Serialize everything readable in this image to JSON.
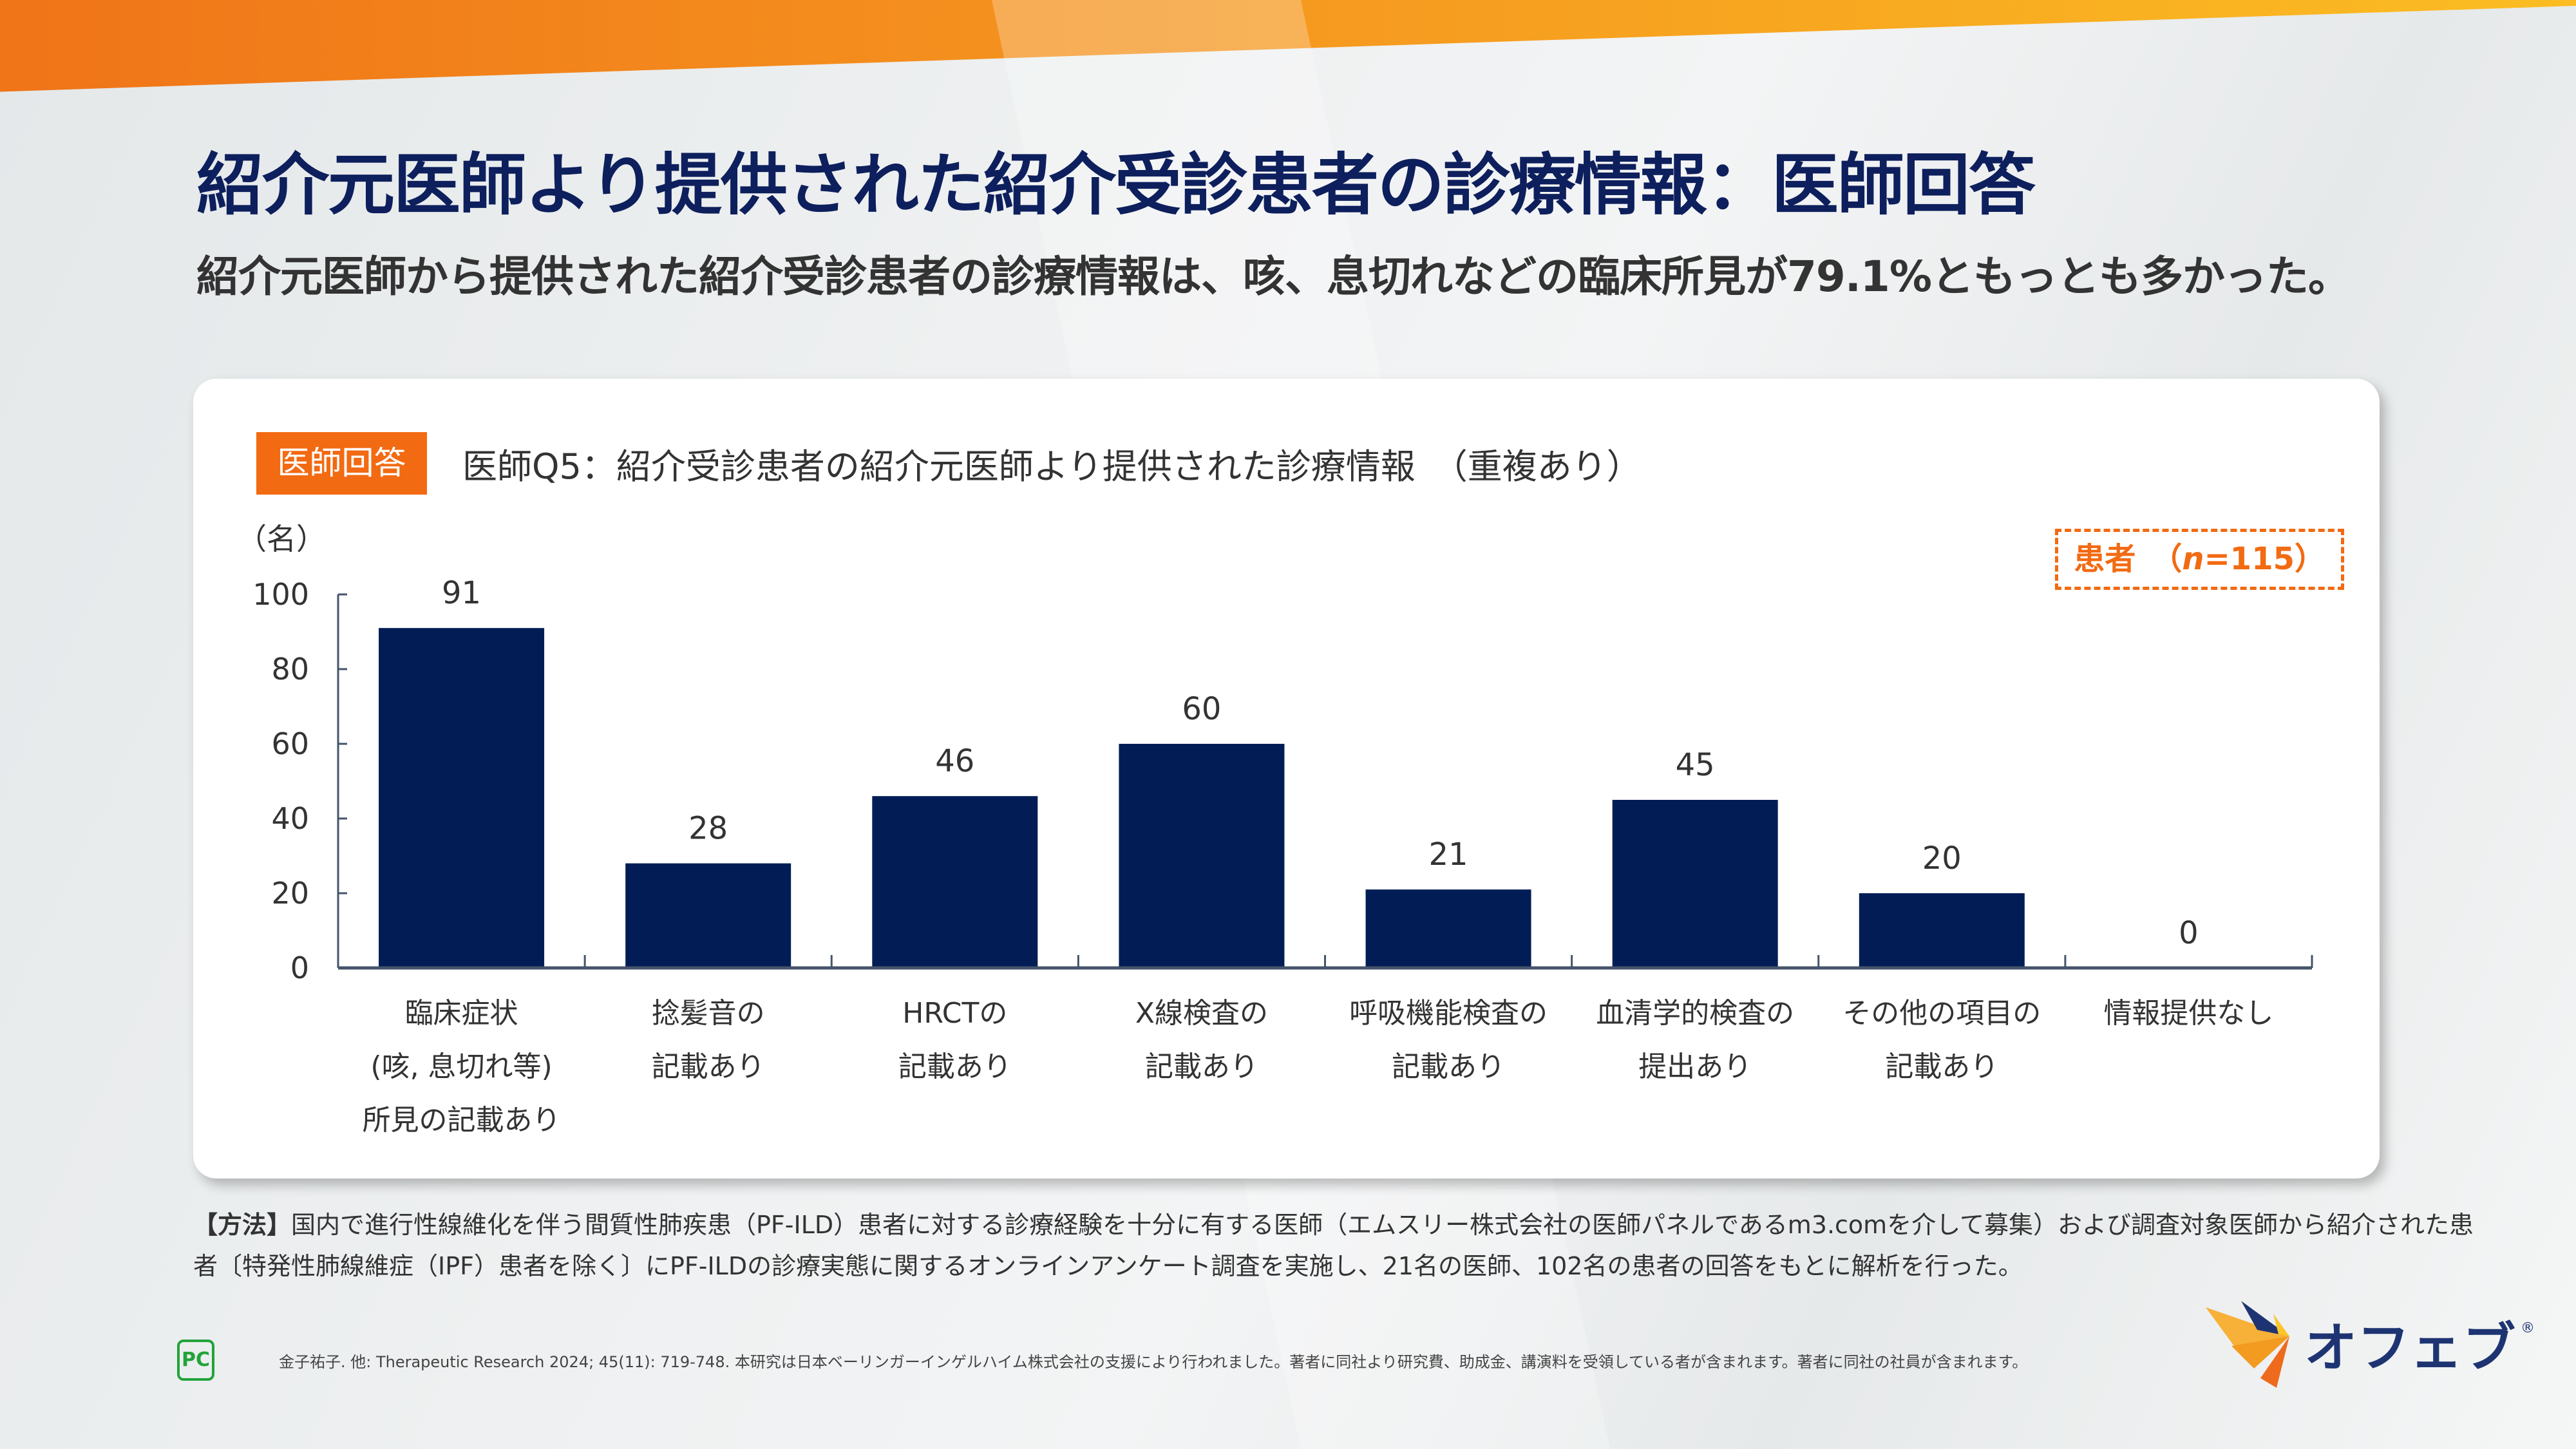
{
  "header": {
    "title": "紹介元医師より提供された紹介受診患者の診療情報：医師回答",
    "subtitle": "紹介元医師から提供された紹介受診患者の診療情報は、咳、息切れなどの臨床所見が79.1%ともっとも多かった。"
  },
  "card": {
    "tag": "医師回答",
    "question": "医師Q5：紹介受診患者の紹介元医師より提供された診療情報　（重複あり）",
    "n_label_prefix": "患者　（",
    "n_label_n": "n",
    "n_label_suffix": "=115）"
  },
  "chart_data": {
    "type": "bar",
    "title": "医師Q5：紹介受診患者の紹介元医師より提供された診療情報　（重複あり）",
    "ylabel": "（名）",
    "xlabel": "",
    "ylim": [
      0,
      100
    ],
    "yticks": [
      0,
      20,
      40,
      60,
      80,
      100
    ],
    "grid": false,
    "legend": "none",
    "bar_color": "#021d55",
    "categories": [
      [
        "臨床症状",
        "(咳, 息切れ等)",
        "所見の記載あり"
      ],
      [
        "捻髪音の",
        "記載あり"
      ],
      [
        "HRCTの",
        "記載あり"
      ],
      [
        "X線検査の",
        "記載あり"
      ],
      [
        "呼吸機能検査の",
        "記載あり"
      ],
      [
        "血清学的検査の",
        "提出あり"
      ],
      [
        "その他の項目の",
        "記載あり"
      ],
      [
        "情報提供なし"
      ]
    ],
    "values": [
      91,
      28,
      46,
      60,
      21,
      45,
      20,
      0
    ]
  },
  "footer": {
    "method_label": "【方法】",
    "method_text": "国内で進行性線維化を伴う間質性肺疾患（PF-ILD）患者に対する診療経験を十分に有する医師（エムスリー株式会社の医師パネルであるm3.comを介して募集）および調査対象医師から紹介された患者〔特発性肺線維症（IPF）患者を除く〕にPF-ILDの診療実態に関するオンラインアンケート調査を実施し、21名の医師、102名の患者の回答をもとに解析を行った。",
    "pc_logo": "PC",
    "citation": "金子祐子. 他: Therapeutic Research 2024; 45(11): 719-748.  本研究は日本ベーリンガーインゲルハイム株式会社の支援により行われました。著者に同社より研究費、助成金、講演料を受領している者が含まれます。著者に同社の社員が含まれます。",
    "brand": "オフェブ",
    "brand_reg": "®"
  },
  "colors": {
    "accent": "#f26a12",
    "title_navy": "#0d1f5c",
    "bar": "#021d55",
    "axis": "#44546a"
  }
}
